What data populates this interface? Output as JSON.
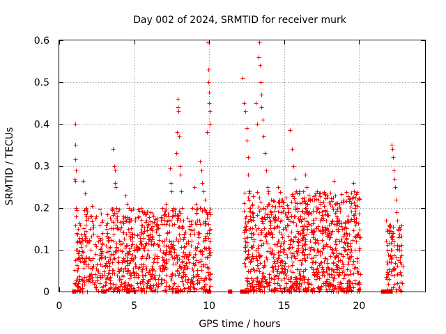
{
  "chart_data": {
    "type": "scatter",
    "title": "Day 002 of 2024, SRMTID for receiver murk",
    "xlabel": "GPS time / hours",
    "ylabel": "SRMTID / TECUs",
    "xlim": [
      0,
      24.4
    ],
    "ylim": [
      0,
      0.6
    ],
    "xticks": [
      0,
      5,
      10,
      15,
      20
    ],
    "yticks": [
      0,
      0.1,
      0.2,
      0.3,
      0.4,
      0.5,
      0.6
    ],
    "xtick_labels": [
      "0",
      "5",
      "10",
      "15",
      "20"
    ],
    "ytick_labels": [
      "0",
      "0.1",
      "0.2",
      "0.3",
      "0.4",
      "0.5",
      "0.6"
    ],
    "grid": true,
    "marker": "+",
    "color": "#ff0000",
    "series": [
      {
        "name": "SRMTID",
        "points": [
          [
            1.05,
            0.4
          ],
          [
            1.05,
            0.35
          ],
          [
            1.05,
            0.315
          ],
          [
            1.1,
            0.29
          ],
          [
            1.0,
            0.27
          ],
          [
            1.05,
            0.265
          ],
          [
            1.1,
            0.18
          ],
          [
            1.15,
            0.14
          ],
          [
            1.1,
            0.1
          ],
          [
            1.2,
            0.05
          ],
          [
            1.25,
            0.02
          ],
          [
            1.3,
            0.01
          ],
          [
            1.4,
            0.16
          ],
          [
            1.5,
            0.12
          ],
          [
            1.55,
            0.08
          ],
          [
            1.6,
            0.265
          ],
          [
            1.7,
            0.235
          ],
          [
            1.75,
            0.2
          ],
          [
            1.8,
            0.18
          ],
          [
            1.85,
            0.12
          ],
          [
            1.9,
            0.06
          ],
          [
            2.0,
            0.03
          ],
          [
            2.05,
            0.15
          ],
          [
            2.1,
            0.1
          ],
          [
            2.2,
            0.205
          ],
          [
            2.3,
            0.16
          ],
          [
            2.4,
            0.09
          ],
          [
            2.5,
            0.05
          ],
          [
            2.6,
            0.12
          ],
          [
            2.7,
            0.02
          ],
          [
            2.8,
            0.08
          ],
          [
            2.9,
            0.14
          ],
          [
            3.0,
            0.04
          ],
          [
            3.1,
            0.11
          ],
          [
            3.2,
            0.06
          ],
          [
            3.3,
            0.13
          ],
          [
            3.4,
            0.02
          ],
          [
            3.5,
            0.09
          ],
          [
            3.6,
            0.34
          ],
          [
            3.65,
            0.3
          ],
          [
            3.7,
            0.29
          ],
          [
            3.7,
            0.26
          ],
          [
            3.75,
            0.25
          ],
          [
            3.8,
            0.2
          ],
          [
            3.85,
            0.17
          ],
          [
            3.9,
            0.15
          ],
          [
            3.95,
            0.1
          ],
          [
            4.0,
            0.05
          ],
          [
            4.1,
            0.12
          ],
          [
            4.2,
            0.07
          ],
          [
            4.3,
            0.02
          ],
          [
            4.4,
            0.23
          ],
          [
            4.5,
            0.21
          ],
          [
            4.6,
            0.15
          ],
          [
            4.7,
            0.09
          ],
          [
            4.8,
            0.04
          ],
          [
            4.9,
            0.13
          ],
          [
            5.0,
            0.1
          ],
          [
            5.1,
            0.06
          ],
          [
            5.2,
            0.02
          ],
          [
            5.3,
            0.18
          ],
          [
            5.4,
            0.12
          ],
          [
            5.5,
            0.08
          ],
          [
            5.6,
            0.14
          ],
          [
            5.7,
            0.04
          ],
          [
            5.8,
            0.17
          ],
          [
            5.9,
            0.1
          ],
          [
            6.0,
            0.05
          ],
          [
            6.1,
            0.19
          ],
          [
            6.2,
            0.13
          ],
          [
            6.3,
            0.08
          ],
          [
            6.4,
            0.03
          ],
          [
            6.5,
            0.15
          ],
          [
            6.6,
            0.11
          ],
          [
            6.7,
            0.06
          ],
          [
            6.8,
            0.17
          ],
          [
            6.9,
            0.12
          ],
          [
            7.0,
            0.07
          ],
          [
            7.1,
            0.21
          ],
          [
            7.2,
            0.14
          ],
          [
            7.3,
            0.09
          ],
          [
            7.4,
            0.295
          ],
          [
            7.45,
            0.26
          ],
          [
            7.5,
            0.24
          ],
          [
            7.55,
            0.18
          ],
          [
            7.6,
            0.12
          ],
          [
            7.65,
            0.08
          ],
          [
            7.7,
            0.04
          ],
          [
            7.8,
            0.33
          ],
          [
            7.85,
            0.38
          ],
          [
            7.9,
            0.46
          ],
          [
            7.9,
            0.44
          ],
          [
            7.95,
            0.43
          ],
          [
            8.0,
            0.37
          ],
          [
            8.05,
            0.3
          ],
          [
            8.1,
            0.28
          ],
          [
            8.15,
            0.24
          ],
          [
            8.2,
            0.2
          ],
          [
            8.25,
            0.17
          ],
          [
            8.3,
            0.13
          ],
          [
            8.4,
            0.09
          ],
          [
            8.5,
            0.06
          ],
          [
            8.6,
            0.03
          ],
          [
            8.7,
            0.15
          ],
          [
            8.8,
            0.11
          ],
          [
            8.9,
            0.2
          ],
          [
            9.0,
            0.25
          ],
          [
            9.1,
            0.21
          ],
          [
            9.2,
            0.17
          ],
          [
            9.3,
            0.13
          ],
          [
            9.4,
            0.31
          ],
          [
            9.5,
            0.29
          ],
          [
            9.55,
            0.26
          ],
          [
            9.6,
            0.24
          ],
          [
            9.7,
            0.22
          ],
          [
            9.8,
            0.19
          ],
          [
            9.85,
            0.38
          ],
          [
            9.9,
            0.595
          ],
          [
            9.95,
            0.53
          ],
          [
            9.95,
            0.5
          ],
          [
            10.0,
            0.475
          ],
          [
            10.0,
            0.45
          ],
          [
            10.05,
            0.43
          ],
          [
            10.05,
            0.4
          ],
          [
            10.0,
            0.14
          ],
          [
            10.0,
            0.1
          ],
          [
            12.2,
            0.51
          ],
          [
            12.3,
            0.45
          ],
          [
            12.4,
            0.43
          ],
          [
            12.5,
            0.39
          ],
          [
            12.5,
            0.36
          ],
          [
            12.6,
            0.32
          ],
          [
            12.6,
            0.28
          ],
          [
            12.7,
            0.24
          ],
          [
            12.7,
            0.2
          ],
          [
            12.8,
            0.17
          ],
          [
            12.8,
            0.14
          ],
          [
            12.9,
            0.11
          ],
          [
            12.9,
            0.08
          ],
          [
            13.0,
            0.05
          ],
          [
            12.4,
            0.12
          ],
          [
            12.5,
            0.08
          ],
          [
            12.6,
            0.05
          ],
          [
            12.7,
            0.02
          ],
          [
            13.1,
            0.45
          ],
          [
            13.2,
            0.4
          ],
          [
            13.3,
            0.56
          ],
          [
            13.35,
            0.595
          ],
          [
            13.4,
            0.54
          ],
          [
            13.45,
            0.5
          ],
          [
            13.5,
            0.47
          ],
          [
            13.5,
            0.44
          ],
          [
            13.55,
            0.41
          ],
          [
            13.6,
            0.37
          ],
          [
            13.7,
            0.33
          ],
          [
            13.8,
            0.29
          ],
          [
            13.9,
            0.25
          ],
          [
            14.0,
            0.21
          ],
          [
            14.1,
            0.17
          ],
          [
            14.2,
            0.13
          ],
          [
            14.3,
            0.09
          ],
          [
            14.4,
            0.06
          ],
          [
            14.5,
            0.04
          ],
          [
            14.6,
            0.25
          ],
          [
            14.7,
            0.22
          ],
          [
            14.8,
            0.19
          ],
          [
            14.9,
            0.15
          ],
          [
            15.0,
            0.12
          ],
          [
            15.1,
            0.09
          ],
          [
            15.2,
            0.05
          ],
          [
            15.3,
            0.03
          ],
          [
            15.4,
            0.385
          ],
          [
            15.5,
            0.34
          ],
          [
            15.6,
            0.3
          ],
          [
            15.7,
            0.27
          ],
          [
            15.8,
            0.24
          ],
          [
            15.9,
            0.2
          ],
          [
            16.0,
            0.17
          ],
          [
            16.1,
            0.14
          ],
          [
            16.2,
            0.11
          ],
          [
            16.3,
            0.08
          ],
          [
            16.4,
            0.28
          ],
          [
            16.5,
            0.25
          ],
          [
            16.6,
            0.22
          ],
          [
            16.7,
            0.19
          ],
          [
            16.8,
            0.16
          ],
          [
            16.9,
            0.13
          ],
          [
            17.0,
            0.1
          ],
          [
            17.1,
            0.07
          ],
          [
            17.2,
            0.24
          ],
          [
            17.3,
            0.2
          ],
          [
            17.4,
            0.17
          ],
          [
            17.5,
            0.14
          ],
          [
            17.6,
            0.11
          ],
          [
            17.7,
            0.08
          ],
          [
            17.8,
            0.05
          ],
          [
            17.9,
            0.03
          ],
          [
            18.0,
            0.16
          ],
          [
            18.1,
            0.13
          ],
          [
            18.2,
            0.1
          ],
          [
            18.3,
            0.265
          ],
          [
            18.4,
            0.21
          ],
          [
            18.5,
            0.18
          ],
          [
            18.6,
            0.15
          ],
          [
            18.7,
            0.12
          ],
          [
            18.8,
            0.09
          ],
          [
            18.9,
            0.06
          ],
          [
            19.0,
            0.04
          ],
          [
            19.1,
            0.14
          ],
          [
            19.2,
            0.11
          ],
          [
            19.3,
            0.08
          ],
          [
            19.4,
            0.05
          ],
          [
            19.5,
            0.02
          ],
          [
            19.6,
            0.26
          ],
          [
            19.65,
            0.24
          ],
          [
            19.7,
            0.2
          ],
          [
            19.75,
            0.16
          ],
          [
            19.8,
            0.12
          ],
          [
            19.85,
            0.08
          ],
          [
            19.9,
            0.05
          ],
          [
            19.95,
            0.02
          ],
          [
            20.0,
            0.1
          ],
          [
            21.8,
            0.17
          ],
          [
            21.9,
            0.145
          ],
          [
            22.0,
            0.145
          ],
          [
            22.1,
            0.1
          ],
          [
            22.15,
            0.35
          ],
          [
            22.2,
            0.34
          ],
          [
            22.25,
            0.32
          ],
          [
            22.3,
            0.29
          ],
          [
            22.35,
            0.27
          ],
          [
            22.4,
            0.25
          ],
          [
            22.45,
            0.22
          ],
          [
            22.5,
            0.19
          ],
          [
            22.55,
            0.17
          ],
          [
            22.6,
            0.15
          ],
          [
            22.65,
            0.13
          ],
          [
            22.7,
            0.1
          ],
          [
            22.75,
            0.07
          ],
          [
            22.8,
            0.04
          ],
          [
            22.85,
            0.02
          ],
          [
            22.9,
            0.06
          ]
        ],
        "dense_regions": [
          {
            "x_range": [
              1.0,
              10.1
            ],
            "y_range": [
              0.0,
              0.2
            ],
            "count": 900,
            "seed": 11
          },
          {
            "x_range": [
              12.3,
              20.1
            ],
            "y_range": [
              0.0,
              0.24
            ],
            "count": 1000,
            "seed": 23
          },
          {
            "x_range": [
              21.8,
              22.9
            ],
            "y_range": [
              0.0,
              0.16
            ],
            "count": 90,
            "seed": 37
          }
        ],
        "zero_markers": [
          1.0,
          3.0,
          4.6,
          7.85,
          10.0,
          11.4,
          12.2,
          12.45,
          21.6,
          21.7,
          21.8,
          21.9,
          22.0,
          22.1
        ]
      }
    ]
  }
}
